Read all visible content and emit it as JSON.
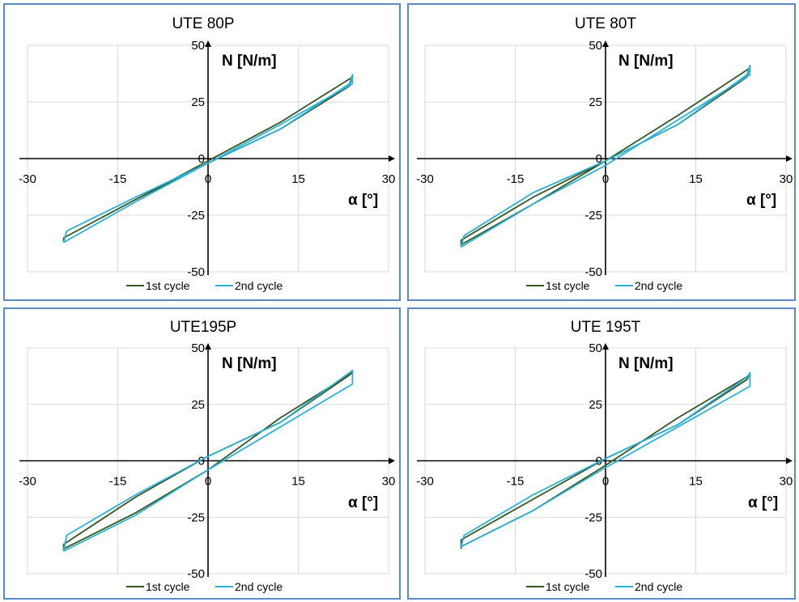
{
  "colors": {
    "cycle1": "#375623",
    "cycle2": "#2bb0d8",
    "panel_border": "#5b8bc7",
    "grid": "#d9d9d9"
  },
  "chart_data": [
    {
      "type": "line",
      "title": "UTE 80P",
      "xlabel": "α [°]",
      "ylabel": "N [N/m]",
      "xlim": [
        -30,
        30
      ],
      "ylim": [
        -50,
        50
      ],
      "xticks": [
        "-30",
        "-15",
        "0",
        "15",
        "30"
      ],
      "yticks": [
        "50",
        "25",
        "0",
        "-25",
        "-50"
      ],
      "grid": true,
      "legend": "bottom",
      "series": [
        {
          "name": "1st cycle",
          "color": "#375623",
          "x": [
            -24,
            -12,
            0,
            12,
            24,
            24,
            23.5,
            12,
            0,
            -12,
            -24,
            -24
          ],
          "y": [
            -35,
            -18,
            -1,
            16,
            36,
            37,
            32,
            13,
            -2,
            -18,
            -35,
            -37
          ]
        },
        {
          "name": "2nd cycle",
          "color": "#2bb0d8",
          "x": [
            -24,
            -12,
            0,
            12,
            24,
            24,
            23.5,
            12,
            0,
            -12,
            -23.5,
            -24
          ],
          "y": [
            -37,
            -19,
            -2,
            15,
            33,
            37,
            33,
            13,
            -2,
            -17,
            -32,
            -37
          ]
        }
      ]
    },
    {
      "type": "line",
      "title": "UTE 80T",
      "xlabel": "α [°]",
      "ylabel": "N [N/m]",
      "xlim": [
        -30,
        30
      ],
      "ylim": [
        -50,
        50
      ],
      "xticks": [
        "-30",
        "-15",
        "0",
        "15",
        "30"
      ],
      "yticks": [
        "50",
        "25",
        "0",
        "-25",
        "-50"
      ],
      "grid": true,
      "legend": "bottom",
      "series": [
        {
          "name": "1st cycle",
          "color": "#375623",
          "x": [
            -24,
            -12,
            0,
            12,
            24,
            24,
            23.5,
            12,
            0,
            -12,
            -24,
            -24
          ],
          "y": [
            -38,
            -20,
            -1,
            19,
            40,
            41,
            36,
            15,
            -1,
            -17,
            -36,
            -39
          ]
        },
        {
          "name": "2nd cycle",
          "color": "#2bb0d8",
          "x": [
            -24,
            -12,
            0,
            12,
            24,
            24,
            23.5,
            12,
            0,
            -12,
            -23.5,
            -24
          ],
          "y": [
            -39,
            -20,
            -3,
            17,
            37,
            41,
            37,
            15,
            -1,
            -15,
            -34,
            -39
          ]
        }
      ]
    },
    {
      "type": "line",
      "title": "UTE195P",
      "xlabel": "α [°]",
      "ylabel": "N [N/m]",
      "xlim": [
        -30,
        30
      ],
      "ylim": [
        -50,
        50
      ],
      "xticks": [
        "-30",
        "-15",
        "0",
        "15",
        "30"
      ],
      "yticks": [
        "50",
        "25",
        "0",
        "-25",
        "-50"
      ],
      "grid": true,
      "legend": "bottom",
      "series": [
        {
          "name": "1st cycle",
          "color": "#375623",
          "x": [
            -24,
            -12,
            0,
            12,
            24,
            24,
            23.5,
            12,
            0,
            -12,
            -24,
            -24
          ],
          "y": [
            -39,
            -23,
            -4,
            19,
            39,
            40,
            38,
            17,
            2,
            -16,
            -37,
            -40
          ]
        },
        {
          "name": "2nd cycle",
          "color": "#2bb0d8",
          "x": [
            -24,
            -12,
            0,
            12,
            24,
            24,
            23.5,
            12,
            0,
            -12,
            -23.5,
            -24
          ],
          "y": [
            -40,
            -24,
            -4,
            15,
            34,
            40,
            39,
            17,
            2,
            -15,
            -33,
            -40
          ]
        }
      ]
    },
    {
      "type": "line",
      "title": "UTE 195T",
      "xlabel": "α [°]",
      "ylabel": "N [N/m]",
      "xlim": [
        -30,
        30
      ],
      "ylim": [
        -50,
        50
      ],
      "xticks": [
        "-30",
        "-15",
        "0",
        "15",
        "30"
      ],
      "yticks": [
        "50",
        "25",
        "0",
        "-25",
        "-50"
      ],
      "grid": true,
      "legend": "bottom",
      "series": [
        {
          "name": "1st cycle",
          "color": "#375623",
          "x": [
            -24,
            -12,
            0,
            12,
            24,
            24,
            23.5,
            12,
            0,
            -12,
            -24,
            -24
          ],
          "y": [
            -38,
            -22,
            -2,
            19,
            38,
            39,
            36,
            16,
            1,
            -17,
            -35,
            -39
          ]
        },
        {
          "name": "2nd cycle",
          "color": "#2bb0d8",
          "x": [
            -24,
            -12,
            0,
            12,
            24,
            24,
            23.5,
            12,
            0,
            -12,
            -23.5,
            -24
          ],
          "y": [
            -38,
            -22,
            -3,
            15,
            33,
            39,
            37,
            16,
            1,
            -15,
            -33,
            -38
          ]
        }
      ]
    }
  ]
}
